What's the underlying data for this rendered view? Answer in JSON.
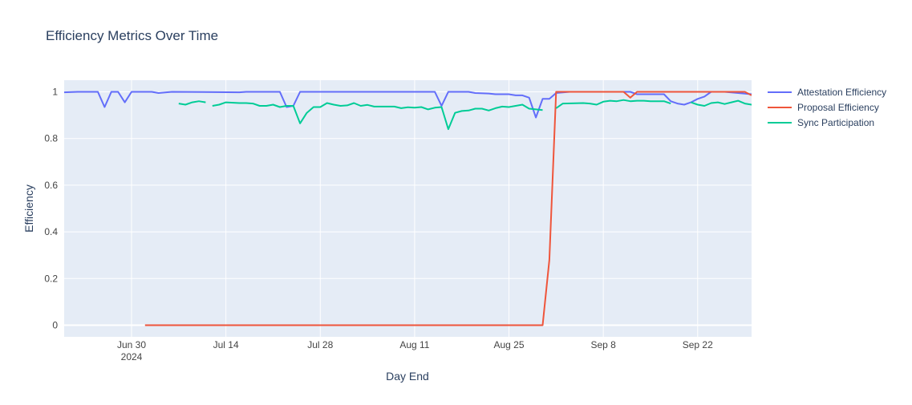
{
  "chart_data": {
    "type": "line",
    "title": "Efficiency Metrics Over Time",
    "xlabel": "Day End",
    "ylabel": "Efficiency",
    "xlim": [
      "2024-06-20",
      "2024-09-30"
    ],
    "ylim": [
      -0.05,
      1.05
    ],
    "grid": true,
    "legend_position": "top-right, outside plot",
    "colors": {
      "plot_background": "#E5ECF6",
      "grid": "#ffffff",
      "text": "#2a3f5f",
      "tick_text": "#444444"
    },
    "x_ticks": [
      {
        "value": "2024-06-30",
        "label": "Jun 30",
        "sublabel": "2024"
      },
      {
        "value": "2024-07-14",
        "label": "Jul 14"
      },
      {
        "value": "2024-07-28",
        "label": "Jul 28"
      },
      {
        "value": "2024-08-11",
        "label": "Aug 11"
      },
      {
        "value": "2024-08-25",
        "label": "Aug 25"
      },
      {
        "value": "2024-09-08",
        "label": "Sep 8"
      },
      {
        "value": "2024-09-22",
        "label": "Sep 22"
      }
    ],
    "y_ticks": [
      {
        "value": 0,
        "label": "0"
      },
      {
        "value": 0.2,
        "label": "0.2"
      },
      {
        "value": 0.4,
        "label": "0.4"
      },
      {
        "value": 0.6,
        "label": "0.6"
      },
      {
        "value": 0.8,
        "label": "0.8"
      },
      {
        "value": 1,
        "label": "1"
      }
    ],
    "series": [
      {
        "name": "Attestation Efficiency",
        "color": "#636EFA",
        "points": [
          [
            "2024-06-20",
            0.998
          ],
          [
            "2024-06-22",
            1.0
          ],
          [
            "2024-06-25",
            1.0
          ],
          [
            "2024-06-26",
            0.935
          ],
          [
            "2024-06-27",
            1.0
          ],
          [
            "2024-06-28",
            1.0
          ],
          [
            "2024-06-29",
            0.955
          ],
          [
            "2024-06-30",
            1.0
          ],
          [
            "2024-07-02",
            1.0
          ],
          [
            "2024-07-03",
            1.0
          ],
          [
            "2024-07-04",
            0.995
          ],
          [
            "2024-07-06",
            1.0
          ],
          [
            "2024-07-16",
            0.998
          ],
          [
            "2024-07-17",
            1.0
          ],
          [
            "2024-07-22",
            1.0
          ],
          [
            "2024-07-23",
            0.935
          ],
          [
            "2024-07-24",
            0.94
          ],
          [
            "2024-07-25",
            1.0
          ],
          [
            "2024-08-14",
            1.0
          ],
          [
            "2024-08-15",
            0.94
          ],
          [
            "2024-08-16",
            1.0
          ],
          [
            "2024-08-19",
            1.0
          ],
          [
            "2024-08-20",
            0.995
          ],
          [
            "2024-08-22",
            0.993
          ],
          [
            "2024-08-23",
            0.99
          ],
          [
            "2024-08-25",
            0.99
          ],
          [
            "2024-08-26",
            0.985
          ],
          [
            "2024-08-27",
            0.985
          ],
          [
            "2024-08-28",
            0.975
          ],
          [
            "2024-08-29",
            0.89
          ],
          [
            "2024-08-30",
            0.97
          ],
          [
            "2024-08-31",
            0.97
          ],
          [
            "2024-09-01",
            0.995
          ],
          [
            "2024-09-03",
            1.0
          ],
          [
            "2024-09-12",
            1.0
          ],
          [
            "2024-09-13",
            0.99
          ],
          [
            "2024-09-16",
            0.99
          ],
          [
            "2024-09-17",
            0.99
          ],
          [
            "2024-09-18",
            0.96
          ],
          [
            "2024-09-19",
            0.95
          ],
          [
            "2024-09-20",
            0.945
          ],
          [
            "2024-09-21",
            0.955
          ],
          [
            "2024-09-22",
            0.97
          ],
          [
            "2024-09-23",
            0.98
          ],
          [
            "2024-09-24",
            1.0
          ],
          [
            "2024-09-26",
            1.0
          ],
          [
            "2024-09-28",
            0.995
          ],
          [
            "2024-09-30",
            0.99
          ]
        ]
      },
      {
        "name": "Proposal Efficiency",
        "color": "#EF553B",
        "points": [
          [
            "2024-07-02",
            0.0
          ],
          [
            "2024-08-30",
            0.0
          ],
          [
            "2024-08-31",
            0.28
          ],
          [
            "2024-09-01",
            1.0
          ],
          [
            "2024-09-11",
            1.0
          ],
          [
            "2024-09-12",
            0.975
          ],
          [
            "2024-09-13",
            1.0
          ],
          [
            "2024-09-29",
            1.0
          ],
          [
            "2024-09-30",
            0.985
          ]
        ]
      },
      {
        "name": "Sync Participation",
        "color": "#00CC96",
        "points": [
          [
            "2024-07-07",
            0.95
          ],
          [
            "2024-07-08",
            0.945
          ],
          [
            "2024-07-09",
            0.955
          ],
          [
            "2024-07-10",
            0.96
          ],
          [
            "2024-07-11",
            0.955
          ],
          null,
          [
            "2024-07-12",
            0.94
          ],
          [
            "2024-07-13",
            0.945
          ],
          [
            "2024-07-14",
            0.955
          ],
          [
            "2024-07-16",
            0.952
          ],
          [
            "2024-07-17",
            0.952
          ],
          [
            "2024-07-18",
            0.95
          ],
          [
            "2024-07-19",
            0.94
          ],
          [
            "2024-07-20",
            0.94
          ],
          [
            "2024-07-21",
            0.945
          ],
          [
            "2024-07-22",
            0.935
          ],
          [
            "2024-07-23",
            0.94
          ],
          [
            "2024-07-24",
            0.94
          ],
          [
            "2024-07-25",
            0.865
          ],
          [
            "2024-07-26",
            0.91
          ],
          [
            "2024-07-27",
            0.935
          ],
          [
            "2024-07-28",
            0.935
          ],
          [
            "2024-07-29",
            0.952
          ],
          [
            "2024-07-30",
            0.945
          ],
          [
            "2024-07-31",
            0.94
          ],
          [
            "2024-08-01",
            0.942
          ],
          [
            "2024-08-02",
            0.952
          ],
          [
            "2024-08-03",
            0.94
          ],
          [
            "2024-08-04",
            0.944
          ],
          [
            "2024-08-05",
            0.937
          ],
          [
            "2024-08-08",
            0.937
          ],
          [
            "2024-08-09",
            0.93
          ],
          [
            "2024-08-10",
            0.934
          ],
          [
            "2024-08-11",
            0.932
          ],
          [
            "2024-08-12",
            0.935
          ],
          [
            "2024-08-13",
            0.925
          ],
          [
            "2024-08-14",
            0.932
          ],
          [
            "2024-08-15",
            0.935
          ],
          [
            "2024-08-16",
            0.84
          ],
          [
            "2024-08-17",
            0.91
          ],
          [
            "2024-08-18",
            0.918
          ],
          [
            "2024-08-19",
            0.92
          ],
          [
            "2024-08-20",
            0.928
          ],
          [
            "2024-08-21",
            0.928
          ],
          [
            "2024-08-22",
            0.92
          ],
          [
            "2024-08-23",
            0.93
          ],
          [
            "2024-08-24",
            0.937
          ],
          [
            "2024-08-25",
            0.935
          ],
          [
            "2024-08-26",
            0.94
          ],
          [
            "2024-08-27",
            0.945
          ],
          [
            "2024-08-28",
            0.928
          ],
          [
            "2024-08-29",
            0.925
          ],
          [
            "2024-08-30",
            0.922
          ],
          null,
          [
            "2024-09-01",
            0.93
          ],
          [
            "2024-09-02",
            0.95
          ],
          [
            "2024-09-05",
            0.952
          ],
          [
            "2024-09-06",
            0.95
          ],
          [
            "2024-09-07",
            0.945
          ],
          [
            "2024-09-08",
            0.958
          ],
          [
            "2024-09-09",
            0.962
          ],
          [
            "2024-09-10",
            0.96
          ],
          [
            "2024-09-11",
            0.965
          ],
          [
            "2024-09-12",
            0.96
          ],
          [
            "2024-09-13",
            0.962
          ],
          [
            "2024-09-14",
            0.962
          ],
          [
            "2024-09-15",
            0.96
          ],
          [
            "2024-09-16",
            0.96
          ],
          [
            "2024-09-17",
            0.96
          ],
          [
            "2024-09-18",
            0.95
          ],
          null,
          [
            "2024-09-21",
            0.955
          ],
          [
            "2024-09-22",
            0.945
          ],
          [
            "2024-09-23",
            0.94
          ],
          [
            "2024-09-24",
            0.952
          ],
          [
            "2024-09-25",
            0.955
          ],
          [
            "2024-09-26",
            0.948
          ],
          [
            "2024-09-27",
            0.955
          ],
          [
            "2024-09-28",
            0.962
          ],
          [
            "2024-09-29",
            0.95
          ],
          [
            "2024-09-30",
            0.945
          ],
          [
            "2024-09-31",
            0.955
          ]
        ]
      }
    ]
  }
}
